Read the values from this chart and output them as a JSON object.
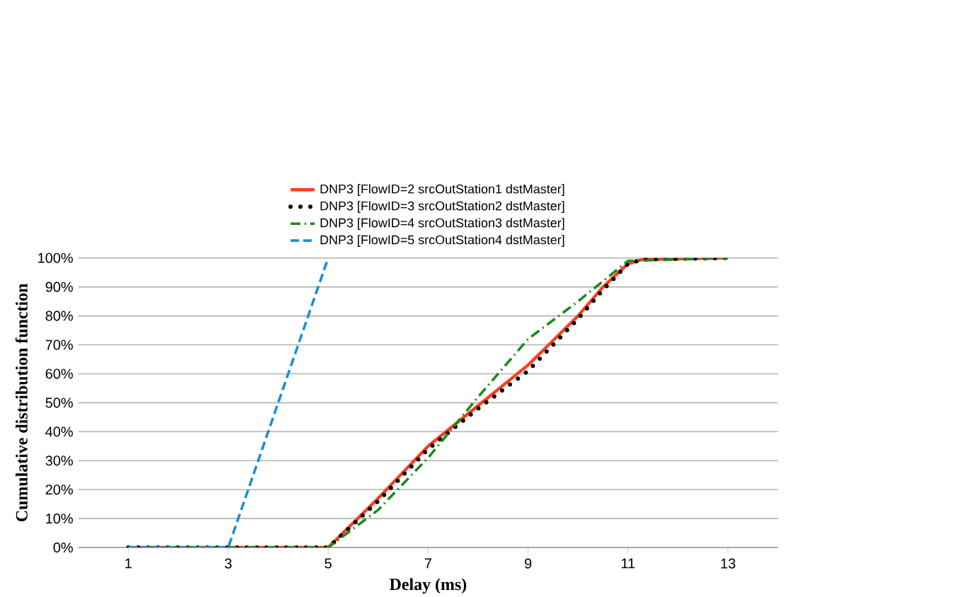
{
  "chart_data": {
    "type": "line",
    "xlabel": "Delay (ms)",
    "ylabel": "Cumulative distribution function",
    "xlim": [
      0,
      14
    ],
    "xticks": [
      1,
      3,
      5,
      7,
      9,
      11,
      13
    ],
    "ylim": [
      0,
      100
    ],
    "yticks": [
      {
        "value": 0,
        "label": "0%"
      },
      {
        "value": 10,
        "label": "10%"
      },
      {
        "value": 20,
        "label": "20%"
      },
      {
        "value": 30,
        "label": "30%"
      },
      {
        "value": 40,
        "label": "40%"
      },
      {
        "value": 50,
        "label": "50%"
      },
      {
        "value": 60,
        "label": "60%"
      },
      {
        "value": 70,
        "label": "70%"
      },
      {
        "value": 80,
        "label": "80%"
      },
      {
        "value": 90,
        "label": "90%"
      },
      {
        "value": 100,
        "label": "100%"
      }
    ],
    "grid": "y",
    "legend": "top",
    "series": [
      {
        "name": "DNP3 [FlowID=2 srcOutStation1 dstMaster]",
        "color": "#ff3b1f",
        "line_style": "solid",
        "x": [
          1,
          5,
          6,
          7,
          8,
          9,
          10,
          10.5,
          11,
          11.3,
          13
        ],
        "values": [
          0,
          0,
          17,
          35,
          49,
          63,
          80,
          90,
          98,
          99.5,
          100
        ]
      },
      {
        "name": "DNP3 [FlowID=3 srcOutStation2 dstMaster]",
        "color": "#000000",
        "line_style": "dotted",
        "x": [
          1,
          5,
          6,
          7,
          8,
          9,
          10,
          10.5,
          11,
          11.3,
          13
        ],
        "values": [
          0,
          0,
          16,
          34,
          48,
          61,
          79,
          89,
          98,
          99.5,
          100
        ]
      },
      {
        "name": "DNP3 [FlowID=4 srcOutStation3 dstMaster]",
        "color": "#1a8a1a",
        "line_style": "dashdot",
        "x": [
          1,
          5,
          6,
          7,
          8,
          9,
          10,
          10.5,
          11,
          13
        ],
        "values": [
          0,
          0,
          13,
          31,
          52,
          72,
          85,
          92,
          99,
          100
        ]
      },
      {
        "name": "DNP3 [FlowID=5 srcOutStation4 dstMaster]",
        "color": "#1a8fd6",
        "line_style": "dashed",
        "x": [
          1,
          3,
          5
        ],
        "values": [
          0,
          0,
          100
        ]
      }
    ]
  }
}
